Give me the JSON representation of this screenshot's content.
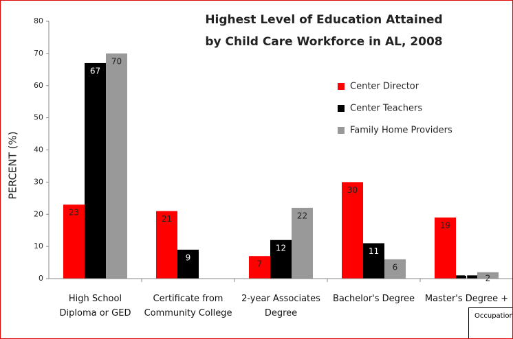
{
  "chart_data": {
    "type": "bar",
    "title": [
      "Highest Level of Education Attained",
      "by Child Care Workforce in AL, 2008"
    ],
    "y_label": "PERCENT (%)",
    "categories": [
      "High School Diploma or GED",
      "Certificate from Community College",
      "2-year Associates Degree",
      "Bachelor's Degree",
      "Master's Degree +"
    ],
    "series": [
      {
        "name": "Center Director",
        "color": "#ff0000",
        "values": [
          23,
          21,
          7,
          30,
          19
        ]
      },
      {
        "name": "Center Teachers",
        "color": "#000000",
        "values": [
          67,
          9,
          12,
          11,
          1
        ]
      },
      {
        "name": "Family Home Providers",
        "color": "#999999",
        "values": [
          70,
          null,
          22,
          6,
          2
        ]
      }
    ],
    "ylim": [
      0,
      80
    ],
    "yticks": [
      0,
      10,
      20,
      30,
      40,
      50,
      60,
      70,
      80
    ],
    "legend": "upper right",
    "annotation": "Occupation"
  }
}
